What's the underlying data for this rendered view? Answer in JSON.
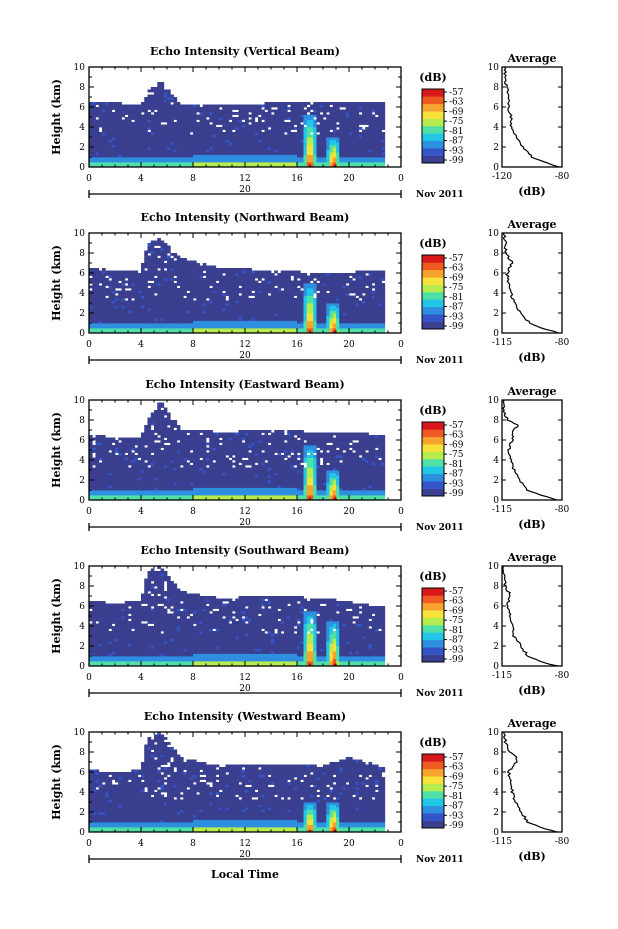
{
  "chart_data": [
    {
      "type": "heatmap",
      "title": "Echo Intensity (Vertical Beam)",
      "ylabel": "Height (km)",
      "xlabel": "",
      "x_ticks": [
        "0",
        "4",
        "8",
        "12",
        "16",
        "20",
        "0"
      ],
      "y_ticks": [
        "0",
        "2",
        "4",
        "6",
        "8",
        "10"
      ],
      "xlim": [
        0,
        24
      ],
      "ylim": [
        0,
        10
      ],
      "date_label": "20",
      "month_label": "Nov 2011",
      "colorbar": {
        "title": "(dB)",
        "ticks": [
          "-57",
          "-63",
          "-69",
          "-75",
          "-81",
          "-87",
          "-93",
          "-99"
        ]
      },
      "cloud_top_km": {
        "times": [
          0,
          2,
          4,
          4.5,
          5.5,
          7,
          10,
          14,
          18,
          22,
          24
        ],
        "heights": [
          6.5,
          6.4,
          6.3,
          7.5,
          8.7,
          6.3,
          6.2,
          6.4,
          6.5,
          6.6,
          6.5
        ]
      },
      "intense_echo": [
        {
          "time": 17.0,
          "top_km": 5.2
        },
        {
          "time": 18.8,
          "top_km": 3.0
        }
      ],
      "average": {
        "title": "Average",
        "xlabel": "(dB)",
        "x_ticks": [
          "-120",
          "-80"
        ],
        "xlim": [
          -120,
          -80
        ],
        "profile": {
          "heights": [
            0,
            0.5,
            1,
            2,
            3,
            4,
            5,
            6,
            7,
            8,
            9,
            10
          ],
          "values": [
            -82,
            -92,
            -100,
            -106,
            -110,
            -114,
            -114,
            -116,
            -115,
            -117,
            -118,
            -118
          ]
        }
      }
    },
    {
      "type": "heatmap",
      "title": "Echo Intensity (Northward Beam)",
      "ylabel": "Height (km)",
      "xlabel": "",
      "x_ticks": [
        "0",
        "4",
        "8",
        "12",
        "16",
        "20",
        "0"
      ],
      "y_ticks": [
        "0",
        "2",
        "4",
        "6",
        "8",
        "10"
      ],
      "xlim": [
        0,
        24
      ],
      "ylim": [
        0,
        10
      ],
      "date_label": "20",
      "month_label": "Nov 2011",
      "colorbar": {
        "title": "(dB)",
        "ticks": [
          "-57",
          "-63",
          "-69",
          "-75",
          "-81",
          "-87",
          "-93",
          "-99"
        ]
      },
      "cloud_top_km": {
        "times": [
          0,
          2,
          4,
          4.5,
          5.5,
          7,
          10,
          14,
          18,
          22,
          24
        ],
        "heights": [
          6.5,
          6.3,
          6.2,
          9.0,
          9.5,
          7.5,
          6.5,
          6.3,
          6.0,
          6.2,
          6.0
        ]
      },
      "intense_echo": [
        {
          "time": 17.0,
          "top_km": 5.0
        },
        {
          "time": 18.8,
          "top_km": 3.0
        }
      ],
      "average": {
        "title": "Average",
        "xlabel": "(dB)",
        "x_ticks": [
          "-115",
          "-80"
        ],
        "xlim": [
          -115,
          -80
        ],
        "profile": {
          "heights": [
            0,
            0.5,
            1,
            2,
            3,
            4,
            5,
            6,
            7,
            8,
            9,
            10
          ],
          "values": [
            -82,
            -92,
            -99,
            -104,
            -108,
            -110,
            -111,
            -112,
            -109,
            -113,
            -113,
            -114
          ]
        }
      }
    },
    {
      "type": "heatmap",
      "title": "Echo Intensity (Eastward Beam)",
      "ylabel": "Height (km)",
      "xlabel": "",
      "x_ticks": [
        "0",
        "4",
        "8",
        "12",
        "16",
        "20",
        "0"
      ],
      "y_ticks": [
        "0",
        "2",
        "4",
        "6",
        "8",
        "10"
      ],
      "xlim": [
        0,
        24
      ],
      "ylim": [
        0,
        10
      ],
      "date_label": "20",
      "month_label": "Nov 2011",
      "colorbar": {
        "title": "(dB)",
        "ticks": [
          "-57",
          "-63",
          "-69",
          "-75",
          "-81",
          "-87",
          "-93",
          "-99"
        ]
      },
      "cloud_top_km": {
        "times": [
          0,
          2,
          4,
          4.5,
          5.5,
          7,
          10,
          14,
          18,
          22,
          24
        ],
        "heights": [
          6.6,
          6.2,
          6.3,
          8.0,
          10.0,
          7.2,
          6.8,
          7.0,
          6.8,
          6.6,
          6.5
        ]
      },
      "intense_echo": [
        {
          "time": 17.0,
          "top_km": 5.5
        },
        {
          "time": 18.8,
          "top_km": 3.0
        }
      ],
      "average": {
        "title": "Average",
        "xlabel": "(dB)",
        "x_ticks": [
          "-115",
          "-80"
        ],
        "xlim": [
          -115,
          -80
        ],
        "profile": {
          "heights": [
            0,
            0.5,
            1,
            2,
            3,
            4,
            5,
            6,
            7,
            7.5,
            8,
            9,
            10
          ],
          "values": [
            -83,
            -93,
            -100,
            -105,
            -108,
            -110,
            -111,
            -109,
            -108,
            -105,
            -112,
            -114,
            -114
          ]
        }
      }
    },
    {
      "type": "heatmap",
      "title": "Echo Intensity (Southward Beam)",
      "ylabel": "Height (km)",
      "xlabel": "",
      "x_ticks": [
        "0",
        "4",
        "8",
        "12",
        "16",
        "20",
        "0"
      ],
      "y_ticks": [
        "0",
        "2",
        "4",
        "6",
        "8",
        "10"
      ],
      "xlim": [
        0,
        24
      ],
      "ylim": [
        0,
        10
      ],
      "date_label": "20",
      "month_label": "Nov 2011",
      "colorbar": {
        "title": "(dB)",
        "ticks": [
          "-57",
          "-63",
          "-69",
          "-75",
          "-81",
          "-87",
          "-93",
          "-99"
        ]
      },
      "cloud_top_km": {
        "times": [
          0,
          2,
          4,
          4.5,
          5.5,
          7,
          10,
          14,
          18,
          22,
          24
        ],
        "heights": [
          6.5,
          6.3,
          6.5,
          9.5,
          10.0,
          7.5,
          6.8,
          7.0,
          6.8,
          6.0,
          6.0
        ]
      },
      "intense_echo": [
        {
          "time": 17.0,
          "top_km": 5.5
        },
        {
          "time": 18.8,
          "top_km": 4.5
        }
      ],
      "average": {
        "title": "Average",
        "xlabel": "(dB)",
        "x_ticks": [
          "-115",
          "-80"
        ],
        "xlim": [
          -115,
          -80
        ],
        "profile": {
          "heights": [
            0,
            0.5,
            1,
            2,
            3,
            4,
            5,
            6,
            7,
            8,
            9,
            10
          ],
          "values": [
            -83,
            -93,
            -100,
            -104,
            -108,
            -109,
            -110,
            -112,
            -110,
            -113,
            -114,
            -115
          ]
        }
      }
    },
    {
      "type": "heatmap",
      "title": "Echo Intensity (Westward Beam)",
      "ylabel": "Height (km)",
      "xlabel": "Local Time",
      "x_ticks": [
        "0",
        "4",
        "8",
        "12",
        "16",
        "20",
        "0"
      ],
      "y_ticks": [
        "0",
        "2",
        "4",
        "6",
        "8",
        "10"
      ],
      "xlim": [
        0,
        24
      ],
      "ylim": [
        0,
        10
      ],
      "date_label": "20",
      "month_label": "Nov 2011",
      "colorbar": {
        "title": "(dB)",
        "ticks": [
          "-57",
          "-63",
          "-69",
          "-75",
          "-81",
          "-87",
          "-93",
          "-99"
        ]
      },
      "cloud_top_km": {
        "times": [
          0,
          2,
          4,
          4.5,
          5.5,
          7,
          10,
          14,
          18,
          20,
          24
        ],
        "heights": [
          6.2,
          6.0,
          6.2,
          9.5,
          10.0,
          7.5,
          6.6,
          6.8,
          6.6,
          7.5,
          6.0
        ]
      },
      "intense_echo": [
        {
          "time": 17.0,
          "top_km": 3.0
        },
        {
          "time": 18.8,
          "top_km": 3.0
        }
      ],
      "average": {
        "title": "Average",
        "xlabel": "(dB)",
        "x_ticks": [
          "-115",
          "-80"
        ],
        "xlim": [
          -115,
          -80
        ],
        "profile": {
          "heights": [
            0,
            0.5,
            1,
            2,
            3,
            4,
            5,
            6,
            7,
            7.5,
            8,
            9,
            10
          ],
          "values": [
            -83,
            -93,
            -100,
            -104,
            -107,
            -109,
            -110,
            -111,
            -107,
            -106,
            -111,
            -113,
            -114
          ]
        }
      }
    }
  ],
  "palette": [
    "#3a3f8f",
    "#3355c8",
    "#2e8ee0",
    "#22c6e6",
    "#4fe0a8",
    "#b6ec4e",
    "#f7e23b",
    "#f7a42e",
    "#ef5a22",
    "#d7191c"
  ]
}
